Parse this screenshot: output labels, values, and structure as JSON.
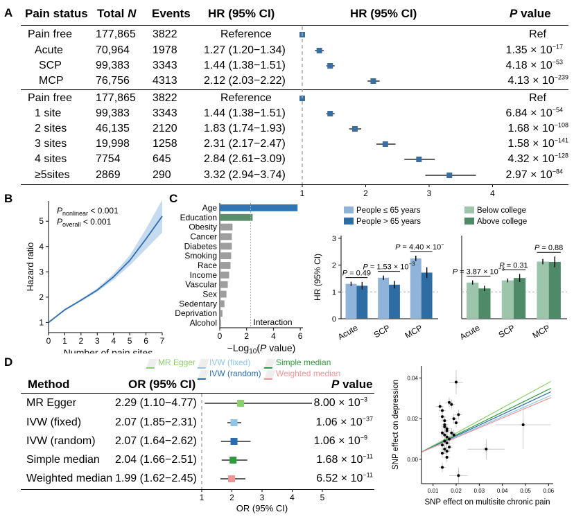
{
  "panelA": {
    "label": "A",
    "headers": {
      "pain_status": "Pain status",
      "total_n_pre": "Total ",
      "total_n_italic": "N",
      "events": "Events",
      "hr": "HR (95% CI)",
      "hr_plot": "HR (95% CI)",
      "p_value_italic": "P",
      "p_value_rest": " value"
    },
    "group1": [
      {
        "status": "Pain free",
        "n": "177,865",
        "events": "3822",
        "hr_text": "Reference",
        "hr": 1.0,
        "lo": 1.0,
        "hi": 1.0,
        "p": "Ref",
        "p_exp": ""
      },
      {
        "status": "Acute",
        "n": "70,964",
        "events": "1978",
        "hr_text": "1.27 (1.20−1.34)",
        "hr": 1.27,
        "lo": 1.2,
        "hi": 1.34,
        "p": "1.35 × 10",
        "p_exp": "−17"
      },
      {
        "status": "SCP",
        "n": "99,383",
        "events": "3343",
        "hr_text": "1.44 (1.38−1.51)",
        "hr": 1.44,
        "lo": 1.38,
        "hi": 1.51,
        "p": "4.18 × 10",
        "p_exp": "−53"
      },
      {
        "status": "MCP",
        "n": "76,756",
        "events": "4313",
        "hr_text": "2.12 (2.03−2.22)",
        "hr": 2.12,
        "lo": 2.03,
        "hi": 2.22,
        "p": "4.13 × 10",
        "p_exp": "−239"
      }
    ],
    "group2": [
      {
        "status": "Pain free",
        "n": "177,865",
        "events": "3822",
        "hr_text": "Reference",
        "hr": 1.0,
        "lo": 1.0,
        "hi": 1.0,
        "p": "Ref",
        "p_exp": ""
      },
      {
        "status": "1 site",
        "n": "99,383",
        "events": "3343",
        "hr_text": "1.44 (1.38−1.51)",
        "hr": 1.44,
        "lo": 1.38,
        "hi": 1.51,
        "p": "6.84 × 10",
        "p_exp": "−54"
      },
      {
        "status": "2 sites",
        "n": "46,135",
        "events": "2120",
        "hr_text": "1.83 (1.74−1.93)",
        "hr": 1.83,
        "lo": 1.74,
        "hi": 1.93,
        "p": "1.68 × 10",
        "p_exp": "−108"
      },
      {
        "status": "3 sites",
        "n": "19,998",
        "events": "1258",
        "hr_text": "2.31 (2.17−2.47)",
        "hr": 2.31,
        "lo": 2.17,
        "hi": 2.47,
        "p": "1.58 × 10",
        "p_exp": "−141"
      },
      {
        "status": "4 sites",
        "n": "7754",
        "events": "645",
        "hr_text": "2.84 (2.61−3.09)",
        "hr": 2.84,
        "lo": 2.61,
        "hi": 3.09,
        "p": "4.32 × 10",
        "p_exp": "−128"
      },
      {
        "status": "≥5sites",
        "n": "2869",
        "events": "290",
        "hr_text": "3.32 (2.94−3.74)",
        "hr": 3.32,
        "lo": 2.94,
        "hi": 3.74,
        "p": "2.97 × 10",
        "p_exp": "−84"
      }
    ],
    "axis_ticks": [
      "1",
      "2",
      "3",
      "4"
    ],
    "xlim": [
      1,
      4
    ],
    "marker_color": "#3a6e9e"
  },
  "panelB": {
    "label": "B",
    "xlabel": "Number of pain sites",
    "ylabel": "Hazard ratio",
    "p_nonlinear_sub": "nonlinear",
    "p_nonlinear_val": " < 0.001",
    "p_overall_sub": "overall",
    "p_overall_val": "  < 0.001",
    "p_letter": "P",
    "x_ticks": [
      "0",
      "1",
      "2",
      "3",
      "4",
      "5",
      "6",
      "7"
    ],
    "y_ticks": [
      "1",
      "2",
      "3",
      "4",
      "5"
    ],
    "xlim": [
      0,
      7
    ],
    "ylim": [
      0.6,
      5.8
    ],
    "curve": {
      "x": [
        0,
        0.5,
        1,
        2,
        3,
        4,
        5,
        6,
        7
      ],
      "y": [
        1.0,
        1.25,
        1.5,
        1.88,
        2.28,
        2.8,
        3.45,
        4.3,
        5.2
      ],
      "lo": [
        1.0,
        1.22,
        1.46,
        1.83,
        2.21,
        2.68,
        3.25,
        3.9,
        4.55
      ],
      "hi": [
        1.0,
        1.28,
        1.54,
        1.93,
        2.35,
        2.92,
        3.65,
        4.7,
        5.85
      ]
    },
    "line_color": "#2f6fb0",
    "band_color": "#c6dbef"
  },
  "panelC": {
    "label": "C",
    "bar": {
      "categories": [
        "Age",
        "Education",
        "Obesity",
        "Cancer",
        "Diabetes",
        "Smoking",
        "Race",
        "Income",
        "Vascular",
        "Sex",
        "Sedentary",
        "Deprivation",
        "Alcohol"
      ],
      "values": [
        5.8,
        2.45,
        0.95,
        0.9,
        0.9,
        0.85,
        0.8,
        0.7,
        0.6,
        0.5,
        0.35,
        0.2,
        0.1
      ],
      "colors": [
        "#2f77b4",
        "#5b8f6b",
        "#9e9e9e",
        "#9e9e9e",
        "#9e9e9e",
        "#9e9e9e",
        "#9e9e9e",
        "#9e9e9e",
        "#9e9e9e",
        "#9e9e9e",
        "#9e9e9e",
        "#9e9e9e",
        "#9e9e9e"
      ],
      "x_ticks": [
        "0",
        "2",
        "4",
        "6"
      ],
      "xlim": [
        0,
        6.2
      ],
      "threshold": 2.3,
      "threshold_label": "Interaction",
      "xlabel_pre": "−Log",
      "xlabel_sub": "10",
      "xlabel_p": "P",
      "xlabel_post": " value)",
      "xlabel_paren": "("
    },
    "age": {
      "legend": [
        "People ≤ 65 years",
        "People > 65 years"
      ],
      "colors": [
        "#8fb3d9",
        "#2e6da4"
      ],
      "categories": [
        "Acute",
        "SCP",
        "MCP"
      ],
      "series": [
        {
          "values": [
            1.3,
            1.53,
            2.25
          ],
          "err": [
            0.08,
            0.08,
            0.1
          ]
        },
        {
          "values": [
            1.23,
            1.27,
            1.72
          ],
          "err": [
            0.14,
            0.14,
            0.2
          ]
        }
      ],
      "ylabel": "HR (95% CI)",
      "y_ticks": [
        "0",
        "1",
        "2",
        "3"
      ],
      "ylim": [
        0,
        3.1
      ],
      "pvals": [
        {
          "text": "P = 0.49",
          "cat": 0
        },
        {
          "text": "P = 1.53 × 10",
          "exp": "−3",
          "cat": 1
        },
        {
          "text": "P = 4.40 × 10",
          "exp": "−7",
          "cat": 2
        }
      ]
    },
    "edu": {
      "legend": [
        "Below college",
        "Above college"
      ],
      "colors": [
        "#9cc5ac",
        "#4e8a67"
      ],
      "categories": [
        "Acute",
        "SCP",
        "MCP"
      ],
      "series": [
        {
          "values": [
            1.35,
            1.43,
            2.13
          ],
          "err": [
            0.08,
            0.07,
            0.1
          ]
        },
        {
          "values": [
            1.13,
            1.52,
            2.12
          ],
          "err": [
            0.1,
            0.15,
            0.2
          ]
        }
      ],
      "ylim": [
        0,
        3.1
      ],
      "pvals": [
        {
          "text": "P = 3.87 × 10",
          "exp": "−3",
          "cat": 0
        },
        {
          "text": "P = 0.31",
          "cat": 1
        },
        {
          "text": "P = 0.88",
          "cat": 2
        }
      ]
    }
  },
  "panelD": {
    "label": "D",
    "legend": [
      {
        "name": "MR Egger",
        "color": "#8ccf6e"
      },
      {
        "name": "IVW (fixed)",
        "color": "#8ec5e8"
      },
      {
        "name": "Simple median",
        "color": "#2f9a3c"
      },
      {
        "name": "IVW (random)",
        "color": "#2b6cb0"
      },
      {
        "name": "Weighted median",
        "color": "#f29494"
      }
    ],
    "headers": {
      "method": "Method",
      "or": "OR (95% CI)",
      "p_italic": "P",
      "p_rest": " value"
    },
    "rows": [
      {
        "method": "MR Egger",
        "or_text": "2.29 (1.10−4.77)",
        "or": 2.29,
        "lo": 1.1,
        "hi": 4.77,
        "p": "8.00 × 10",
        "p_exp": "−3",
        "color": "#8ccf6e"
      },
      {
        "method": "IVW (fixed)",
        "or_text": "2.07 (1.85−2.31)",
        "or": 2.07,
        "lo": 1.85,
        "hi": 2.31,
        "p": "1.06 × 10",
        "p_exp": "−37",
        "color": "#8ec5e8"
      },
      {
        "method": "IVW (random)",
        "or_text": "2.07 (1.64−2.62)",
        "or": 2.07,
        "lo": 1.64,
        "hi": 2.62,
        "p": "1.06 × 10",
        "p_exp": "−9",
        "color": "#2b6cb0"
      },
      {
        "method": "Simple median",
        "or_text": "2.04 (1.66−2.51)",
        "or": 2.04,
        "lo": 1.66,
        "hi": 2.51,
        "p": "1.68 × 10",
        "p_exp": "−11",
        "color": "#2f9a3c"
      },
      {
        "method": "Weighted median",
        "or_text": "1.99 (1.62−2.45)",
        "or": 1.99,
        "lo": 1.62,
        "hi": 2.45,
        "p": "6.52 × 10",
        "p_exp": "−11",
        "color": "#f29494"
      }
    ],
    "axis_ticks": [
      "1",
      "2",
      "3",
      "4",
      "5"
    ],
    "xlim": [
      1,
      5
    ],
    "xlabel": "OR (95% CI)",
    "scatter": {
      "xlabel": "SNP effect on multisite chronic pain",
      "ylabel": "SNP effect on depression",
      "x_ticks": [
        "0.01",
        "0.02",
        "0.03",
        "0.04",
        "0.05",
        "0.06"
      ],
      "y_ticks": [
        "0.00",
        "0.02",
        "0.04"
      ],
      "xlim": [
        0.005,
        0.062
      ],
      "ylim": [
        -0.012,
        0.046
      ],
      "points": [
        [
          0.013,
          0.026
        ],
        [
          0.014,
          0.024
        ],
        [
          0.014,
          0.021
        ],
        [
          0.015,
          0.019
        ],
        [
          0.015,
          0.017
        ],
        [
          0.015,
          0.016
        ],
        [
          0.016,
          0.015
        ],
        [
          0.016,
          0.014
        ],
        [
          0.014,
          0.013
        ],
        [
          0.015,
          0.012
        ],
        [
          0.016,
          0.011
        ],
        [
          0.017,
          0.01
        ],
        [
          0.015,
          0.009
        ],
        [
          0.016,
          0.008
        ],
        [
          0.014,
          0.007
        ],
        [
          0.017,
          0.006
        ],
        [
          0.015,
          0.005
        ],
        [
          0.016,
          0.004
        ],
        [
          0.014,
          0.003
        ],
        [
          0.018,
          0.013
        ],
        [
          0.019,
          0.02
        ],
        [
          0.02,
          0.018
        ],
        [
          0.018,
          0.027
        ],
        [
          0.021,
          0.022
        ],
        [
          0.019,
          0.012
        ],
        [
          0.016,
          0.001
        ],
        [
          0.014,
          -0.004
        ],
        [
          0.02,
          0.038
        ],
        [
          0.021,
          -0.008
        ],
        [
          0.033,
          0.005
        ],
        [
          0.049,
          0.017
        ],
        [
          0.017,
          0.028
        ]
      ],
      "lines": [
        {
          "slope": 0.62,
          "intercept": 0.0005,
          "color": "#8ccf6e"
        },
        {
          "slope": 0.56,
          "intercept": 0.0008,
          "color": "#2f9a3c"
        },
        {
          "slope": 0.53,
          "intercept": 0.0009,
          "color": "#2b6cb0"
        },
        {
          "slope": 0.5,
          "intercept": 0.001,
          "color": "#8ec5e8"
        },
        {
          "slope": 0.48,
          "intercept": 0.0011,
          "color": "#f29494"
        }
      ]
    }
  }
}
